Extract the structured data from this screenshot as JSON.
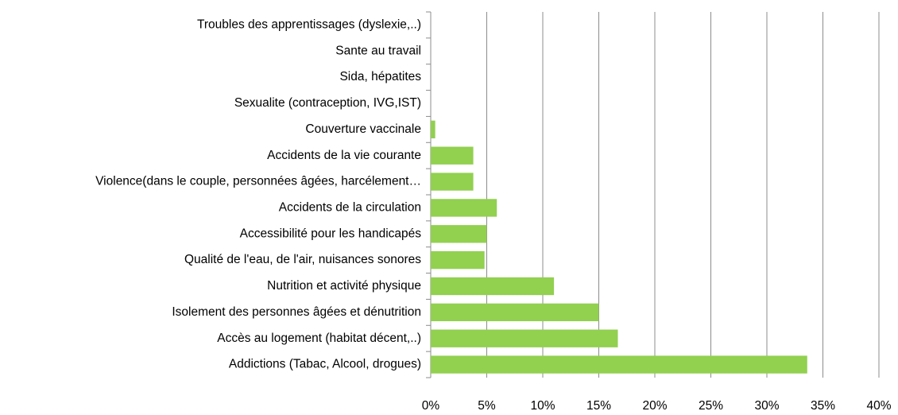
{
  "chart_data": {
    "type": "bar",
    "orientation": "horizontal",
    "categories": [
      "Troubles des apprentissages (dyslexie,..)",
      "Sante au travail",
      "Sida, hépatites",
      "Sexualite (contraception, IVG,IST)",
      "Couverture vaccinale",
      "Accidents de la vie courante",
      "Violence(dans le couple, personnées âgées, harcélement…",
      "Accidents de la circulation",
      "Accessibilité pour les handicapés",
      "Qualité de l'eau, de l'air, nuisances sonores",
      "Nutrition et activité physique",
      "Isolement des personnes âgées et dénutrition",
      "Accès au logement (habitat décent,..)",
      "Addictions (Tabac, Alcool, drogues)"
    ],
    "values": [
      0,
      0,
      0,
      0,
      0.4,
      3.8,
      3.8,
      5.9,
      5.0,
      4.8,
      11.0,
      15.0,
      16.7,
      33.6
    ],
    "color": "#92d050",
    "xlim": [
      0,
      40
    ],
    "xticks": [
      {
        "value": 0,
        "label": "0%"
      },
      {
        "value": 5,
        "label": "5%"
      },
      {
        "value": 10,
        "label": "10%"
      },
      {
        "value": 15,
        "label": "15%"
      },
      {
        "value": 20,
        "label": "20%"
      },
      {
        "value": 25,
        "label": "25%"
      },
      {
        "value": 30,
        "label": "30%"
      },
      {
        "value": 35,
        "label": "35%"
      },
      {
        "value": 40,
        "label": "40%"
      }
    ],
    "grid": true
  }
}
